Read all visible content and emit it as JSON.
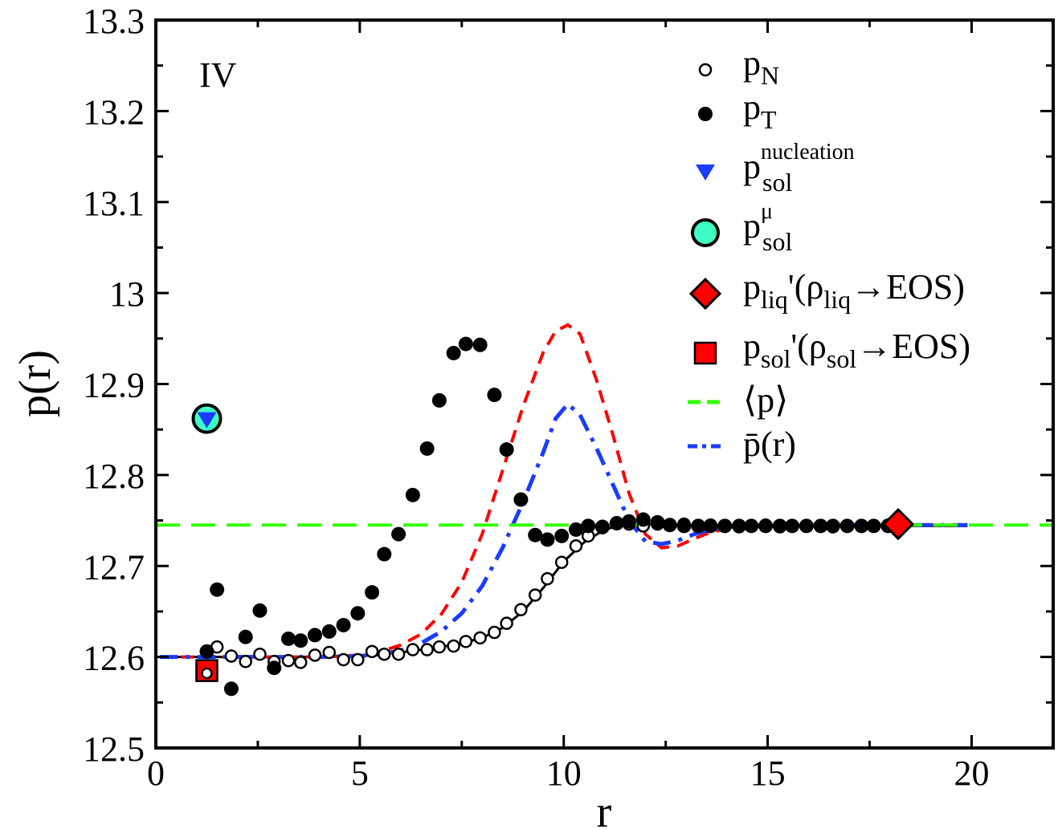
{
  "chart_data": {
    "type": "scatter",
    "panel_label": "IV",
    "xlabel": "r",
    "ylabel": "p(r)",
    "xlim": [
      0,
      22
    ],
    "ylim": [
      12.5,
      13.3
    ],
    "x_ticks": [
      0,
      5,
      10,
      15,
      20
    ],
    "y_ticks": [
      12.5,
      12.6,
      12.7,
      12.8,
      12.9,
      13.0,
      13.1,
      13.2,
      13.3
    ],
    "x_tick_labels": [
      "0",
      "5",
      "10",
      "15",
      "20"
    ],
    "y_tick_labels": [
      "12.5",
      "12.6",
      "12.7",
      "12.8",
      "12.9",
      "13",
      "13.1",
      "13.2",
      "13.3"
    ],
    "legend_position": "top-right",
    "legend": [
      {
        "key": "pN",
        "base": "p",
        "sub": "N",
        "sup": "",
        "tail": "",
        "marker": "open-circle"
      },
      {
        "key": "pT",
        "base": "p",
        "sub": "T",
        "sup": "",
        "tail": "",
        "marker": "filled-circle"
      },
      {
        "key": "pnuc",
        "base": "p",
        "sub": "sol",
        "sup": "nucleation",
        "tail": "",
        "marker": "blue-triangle"
      },
      {
        "key": "pmu",
        "base": "p",
        "sub": "sol",
        "sup": "μ",
        "tail": "",
        "marker": "turquoise-circle"
      },
      {
        "key": "pliq",
        "base": "p",
        "sub": "liq",
        "sup": "",
        "tail": "'(ρ",
        "tail_sub": "liq",
        "tail_end": "→EOS)",
        "marker": "red-diamond"
      },
      {
        "key": "psol",
        "base": "p",
        "sub": "sol",
        "sup": "",
        "tail": "'(ρ",
        "tail_sub": "sol",
        "tail_end": "→EOS)",
        "marker": "red-square"
      },
      {
        "key": "pmean",
        "text": "⟨p⟩",
        "marker": "green-dash"
      },
      {
        "key": "pbar",
        "text": "p̄(r)",
        "marker": "blue-dashdot"
      }
    ],
    "colors": {
      "black": "#000000",
      "red": "#ff0000",
      "blue": "#1a3cff",
      "green": "#33ff00",
      "turquoise": "#3dffc4"
    },
    "series": [
      {
        "name": "pN",
        "style": "open-circle",
        "x": [
          1.25,
          1.5,
          1.85,
          2.2,
          2.55,
          2.9,
          3.25,
          3.55,
          3.9,
          4.25,
          4.6,
          4.95,
          5.3,
          5.6,
          5.95,
          6.3,
          6.65,
          6.95,
          7.3,
          7.6,
          7.95,
          8.3,
          8.6,
          8.95,
          9.3,
          9.6,
          9.95,
          10.3,
          10.6,
          10.95,
          11.3,
          11.6,
          11.95,
          12.3,
          12.6,
          12.95,
          13.3,
          13.6,
          13.95,
          14.3,
          14.6,
          14.95,
          15.3,
          15.6,
          15.95,
          16.3,
          16.6,
          16.95,
          17.3,
          17.6,
          17.95,
          18.2
        ],
        "y": [
          12.582,
          12.611,
          12.601,
          12.595,
          12.603,
          12.595,
          12.596,
          12.594,
          12.602,
          12.605,
          12.597,
          12.597,
          12.606,
          12.603,
          12.603,
          12.608,
          12.608,
          12.611,
          12.612,
          12.617,
          12.621,
          12.627,
          12.637,
          12.652,
          12.668,
          12.686,
          12.704,
          12.722,
          12.733,
          12.742,
          12.747,
          12.746,
          12.744,
          12.746,
          12.745,
          12.746,
          12.744,
          12.745,
          12.744,
          12.743,
          12.744,
          12.745,
          12.743,
          12.744,
          12.744,
          12.744,
          12.743,
          12.744,
          12.744,
          12.744,
          12.745,
          12.745
        ]
      },
      {
        "name": "pT",
        "style": "filled-circle",
        "x": [
          1.25,
          1.5,
          1.85,
          2.2,
          2.55,
          2.9,
          3.25,
          3.55,
          3.9,
          4.25,
          4.6,
          4.95,
          5.3,
          5.6,
          5.95,
          6.3,
          6.65,
          6.95,
          7.3,
          7.6,
          7.95,
          8.3,
          8.6,
          8.95,
          9.3,
          9.6,
          9.95,
          10.3,
          10.6,
          10.95,
          11.3,
          11.6,
          11.95,
          12.3,
          12.6,
          12.95,
          13.3,
          13.6,
          13.95,
          14.3,
          14.6,
          14.95,
          15.3,
          15.6,
          15.95,
          16.3,
          16.6,
          16.95,
          17.3,
          17.6,
          17.95,
          18.2
        ],
        "y": [
          12.606,
          12.674,
          12.565,
          12.622,
          12.651,
          12.588,
          12.62,
          12.618,
          12.624,
          12.628,
          12.635,
          12.648,
          12.671,
          12.713,
          12.735,
          12.778,
          12.829,
          12.882,
          12.934,
          12.944,
          12.943,
          12.888,
          12.828,
          12.773,
          12.734,
          12.729,
          12.733,
          12.74,
          12.744,
          12.743,
          12.747,
          12.749,
          12.751,
          12.748,
          12.745,
          12.744,
          12.744,
          12.744,
          12.744,
          12.744,
          12.744,
          12.744,
          12.744,
          12.744,
          12.744,
          12.744,
          12.744,
          12.744,
          12.744,
          12.744,
          12.744,
          12.744
        ]
      },
      {
        "name": "p_sol nucleation",
        "style": "blue-triangle",
        "x": [
          1.25
        ],
        "y": [
          12.862
        ]
      },
      {
        "name": "p_sol mu",
        "style": "turquoise-circle",
        "x": [
          1.25
        ],
        "y": [
          12.862
        ]
      },
      {
        "name": "p_liq'(rho_liq -> EOS)",
        "style": "red-diamond",
        "x": [
          18.2
        ],
        "y": [
          12.746
        ]
      },
      {
        "name": "p_sol'(rho_sol -> EOS)",
        "style": "red-square",
        "x": [
          1.25
        ],
        "y": [
          12.585
        ]
      },
      {
        "name": "<p>",
        "style": "green-dash",
        "x": [
          0,
          22
        ],
        "y": [
          12.745,
          12.745
        ]
      },
      {
        "name": "p_bar(r)",
        "style": "blue-dashdot",
        "x": [
          0.1,
          1.0,
          2.0,
          3.0,
          4.0,
          5.0,
          5.5,
          6.0,
          6.5,
          7.0,
          7.5,
          8.0,
          8.5,
          9.0,
          9.5,
          9.8,
          10.1,
          10.4,
          10.8,
          11.2,
          11.6,
          12.0,
          12.4,
          12.8,
          13.2,
          13.6,
          14.0,
          15.0,
          16.0,
          17.0,
          18.0,
          19.0,
          19.9
        ],
        "y": [
          12.6,
          12.6,
          12.6,
          12.6,
          12.6,
          12.601,
          12.603,
          12.607,
          12.615,
          12.628,
          12.648,
          12.678,
          12.72,
          12.77,
          12.825,
          12.862,
          12.878,
          12.866,
          12.83,
          12.79,
          12.75,
          12.727,
          12.724,
          12.728,
          12.735,
          12.74,
          12.743,
          12.744,
          12.745,
          12.745,
          12.745,
          12.745,
          12.745
        ]
      },
      {
        "name": "p_T fit",
        "style": "red-dashed",
        "x": [
          0.1,
          1.0,
          2.0,
          3.0,
          4.0,
          5.0,
          5.5,
          6.0,
          6.5,
          7.0,
          7.5,
          8.0,
          8.5,
          9.0,
          9.5,
          9.8,
          10.1,
          10.4,
          10.8,
          11.2,
          11.6,
          12.0,
          12.4,
          12.8,
          13.2,
          13.6,
          14.0,
          15.0,
          16.0,
          17.0,
          18.0,
          19.0,
          19.9
        ],
        "y": [
          12.6,
          12.6,
          12.6,
          12.6,
          12.6,
          12.602,
          12.606,
          12.613,
          12.625,
          12.647,
          12.682,
          12.735,
          12.805,
          12.875,
          12.935,
          12.958,
          12.965,
          12.955,
          12.905,
          12.845,
          12.78,
          12.735,
          12.72,
          12.722,
          12.73,
          12.737,
          12.741,
          12.744,
          12.745,
          12.745,
          12.745,
          12.745,
          12.745
        ]
      },
      {
        "name": "p_N fit",
        "style": "black-solid",
        "x": [
          0.1,
          1.0,
          2.0,
          3.0,
          4.0,
          5.0,
          6.0,
          7.0,
          7.5,
          8.0,
          8.5,
          9.0,
          9.5,
          10.0,
          10.5,
          11.0,
          11.5,
          12.0,
          13.0,
          14.0,
          15.0,
          16.0,
          17.0,
          18.0,
          19.0,
          19.9
        ],
        "y": [
          12.6,
          12.6,
          12.6,
          12.6,
          12.6,
          12.601,
          12.605,
          12.611,
          12.615,
          12.621,
          12.632,
          12.65,
          12.676,
          12.705,
          12.726,
          12.74,
          12.746,
          12.746,
          12.745,
          12.744,
          12.744,
          12.744,
          12.744,
          12.744,
          12.744,
          12.744
        ]
      }
    ]
  }
}
